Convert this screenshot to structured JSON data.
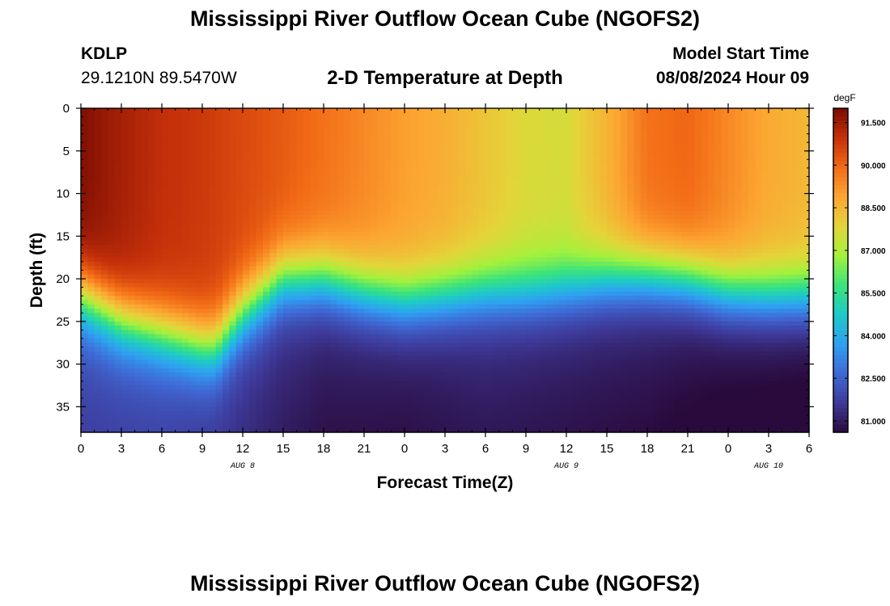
{
  "header": {
    "title": "Mississippi River Outflow Ocean Cube (NGOFS2)",
    "station": "KDLP",
    "coordinates": "29.1210N  89.5470W",
    "subtitle": "2-D Temperature at Depth",
    "model_start_label": "Model Start Time",
    "model_start_value": "08/08/2024 Hour 09"
  },
  "footer": {
    "title": "Mississippi River Outflow Ocean Cube (NGOFS2)"
  },
  "chart_data": {
    "type": "heatmap",
    "title": "2-D Temperature at Depth",
    "xlabel": "Forecast Time(Z)",
    "ylabel": "Depth (ft)",
    "x_range_hours": [
      0,
      54
    ],
    "x_tick_labels": [
      "0",
      "3",
      "6",
      "9",
      "12",
      "15",
      "18",
      "21",
      "0",
      "3",
      "6",
      "9",
      "12",
      "15",
      "18",
      "21",
      "0",
      "3",
      "6"
    ],
    "date_labels": [
      {
        "label": "AUG 8",
        "hour": 12
      },
      {
        "label": "AUG 9",
        "hour": 36
      },
      {
        "label": "AUG 10",
        "hour": 51
      }
    ],
    "y_range_ft": [
      0,
      38
    ],
    "y_tick_values": [
      0,
      5,
      10,
      15,
      20,
      25,
      30,
      35
    ],
    "colorbar": {
      "unit": "degF",
      "min": 80.6,
      "max": 92.0,
      "tick_labels": [
        "91.500",
        "90.000",
        "88.500",
        "87.000",
        "85.500",
        "84.000",
        "82.500",
        "81.000"
      ],
      "tick_values": [
        91.5,
        90.0,
        88.5,
        87.0,
        85.5,
        84.0,
        82.5,
        81.0
      ],
      "colors": [
        "#2a0a3c",
        "#3e3a9a",
        "#3f6ad6",
        "#2fa0f2",
        "#1dcac8",
        "#3ce47a",
        "#a4f13c",
        "#e4d43a",
        "#fca632",
        "#f26a16",
        "#c4300a",
        "#7a0c02"
      ]
    },
    "thermocline_depth_ft": [
      {
        "hour": 0,
        "depth": 22
      },
      {
        "hour": 3,
        "depth": 25
      },
      {
        "hour": 6,
        "depth": 26.5
      },
      {
        "hour": 9,
        "depth": 28
      },
      {
        "hour": 10,
        "depth": 28
      },
      {
        "hour": 12,
        "depth": 24
      },
      {
        "hour": 15,
        "depth": 20
      },
      {
        "hour": 18,
        "depth": 20
      },
      {
        "hour": 21,
        "depth": 21.5
      },
      {
        "hour": 24,
        "depth": 22.5
      },
      {
        "hour": 27,
        "depth": 22
      },
      {
        "hour": 30,
        "depth": 21.5
      },
      {
        "hour": 33,
        "depth": 21.5
      },
      {
        "hour": 36,
        "depth": 21
      },
      {
        "hour": 39,
        "depth": 20
      },
      {
        "hour": 42,
        "depth": 19.5
      },
      {
        "hour": 45,
        "depth": 20
      },
      {
        "hour": 48,
        "depth": 21.5
      },
      {
        "hour": 51,
        "depth": 22
      },
      {
        "hour": 54,
        "depth": 22
      }
    ],
    "surface_temperature_degF": [
      {
        "hour": 0,
        "value": 91.9
      },
      {
        "hour": 3,
        "value": 91.4
      },
      {
        "hour": 6,
        "value": 91.0
      },
      {
        "hour": 9,
        "value": 90.8
      },
      {
        "hour": 12,
        "value": 90.5
      },
      {
        "hour": 15,
        "value": 90.2
      },
      {
        "hour": 18,
        "value": 89.8
      },
      {
        "hour": 21,
        "value": 89.4
      },
      {
        "hour": 24,
        "value": 89.0
      },
      {
        "hour": 27,
        "value": 88.7
      },
      {
        "hour": 30,
        "value": 88.2
      },
      {
        "hour": 33,
        "value": 87.7
      },
      {
        "hour": 36,
        "value": 87.6
      },
      {
        "hour": 39,
        "value": 88.6
      },
      {
        "hour": 42,
        "value": 89.8
      },
      {
        "hour": 45,
        "value": 90.0
      },
      {
        "hour": 48,
        "value": 89.4
      },
      {
        "hour": 51,
        "value": 88.8
      },
      {
        "hour": 54,
        "value": 88.5
      }
    ],
    "bottom_temperature_degF": [
      {
        "hour": 0,
        "value": 82.2
      },
      {
        "hour": 6,
        "value": 82.2
      },
      {
        "hour": 12,
        "value": 81.8
      },
      {
        "hour": 18,
        "value": 81.3
      },
      {
        "hour": 24,
        "value": 81.2
      },
      {
        "hour": 30,
        "value": 81.4
      },
      {
        "hour": 36,
        "value": 81.3
      },
      {
        "hour": 42,
        "value": 81.2
      },
      {
        "hour": 48,
        "value": 80.9
      },
      {
        "hour": 54,
        "value": 80.8
      }
    ]
  }
}
